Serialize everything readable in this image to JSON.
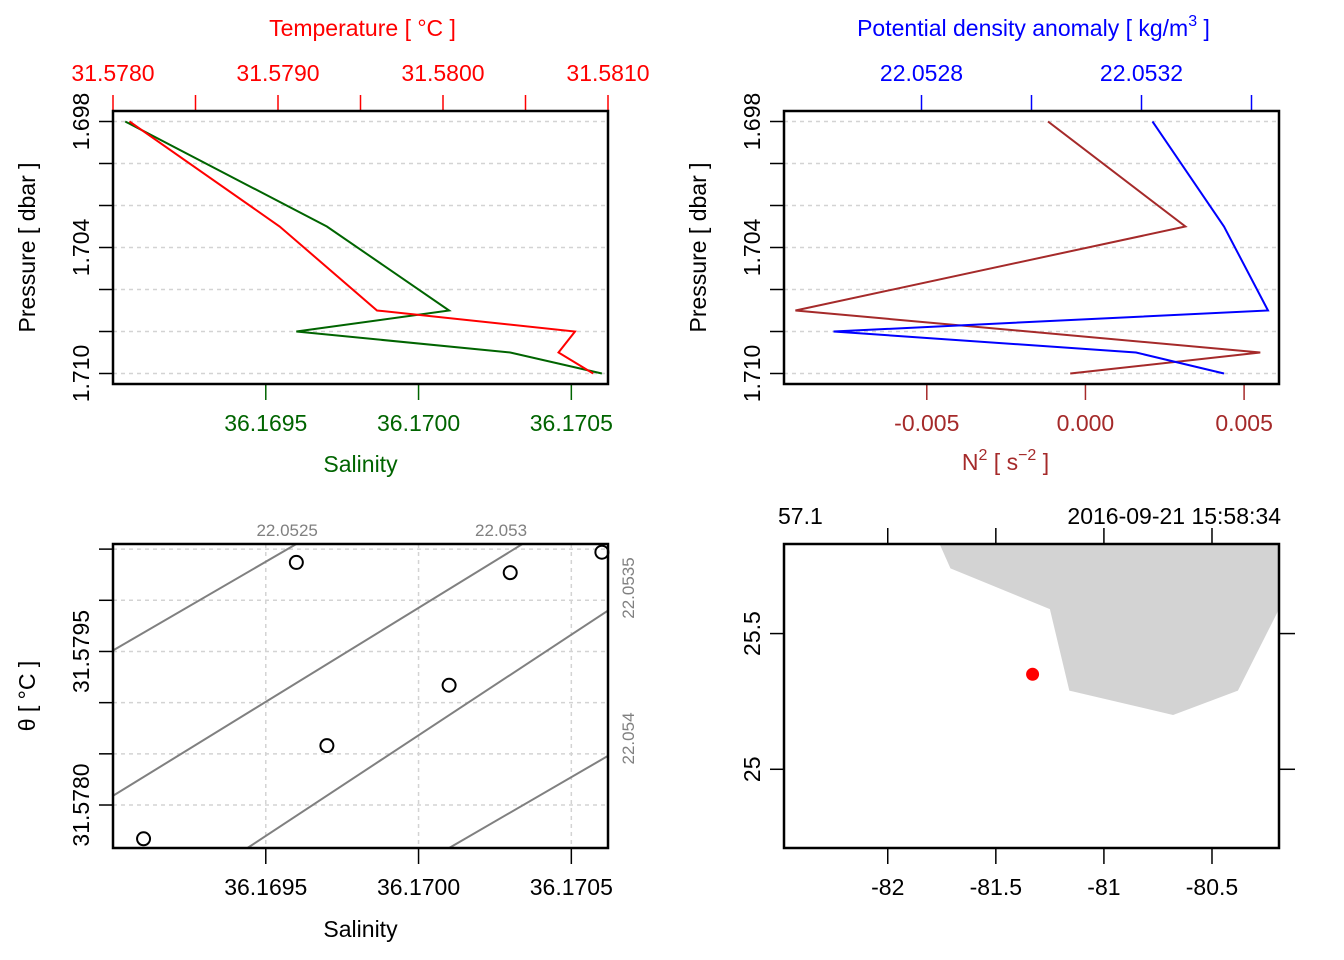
{
  "chart_data": [
    {
      "type": "line",
      "panel": "top-left",
      "title": "",
      "top_axis": {
        "label": "Temperature [ °C ]",
        "color": "#ff0000",
        "range": [
          31.578,
          31.581
        ],
        "ticks": [
          31.578,
          31.5785,
          31.579,
          31.5795,
          31.58,
          31.5805,
          31.581
        ],
        "tick_labels": [
          "31.5780",
          "31.5790",
          "31.5800",
          "31.5810"
        ],
        "tick_label_values": [
          31.578,
          31.579,
          31.58,
          31.581
        ]
      },
      "bottom_axis": {
        "label": "Salinity",
        "color": "#006400",
        "range": [
          36.169,
          36.17062
        ],
        "ticks": [
          36.1695,
          36.17,
          36.1705
        ],
        "tick_labels": [
          "36.1695",
          "36.1700",
          "36.1705"
        ]
      },
      "left_axis": {
        "label": "Pressure [ dbar ]",
        "range": [
          1.6975,
          1.7105
        ],
        "reversed": true,
        "ticks": [
          1.698,
          1.7,
          1.702,
          1.704,
          1.706,
          1.708,
          1.71
        ],
        "tick_labels": [
          "1.698",
          "1.704",
          "1.710"
        ],
        "tick_label_values": [
          1.698,
          1.704,
          1.71
        ]
      },
      "grid": "horizontal-dashed",
      "series": [
        {
          "name": "Temperature",
          "color": "#ff0000",
          "pressure": [
            1.698,
            1.703,
            1.707,
            1.708,
            1.709,
            1.71
          ],
          "values": [
            31.5781,
            31.57901,
            31.5796,
            31.5808,
            31.5807,
            31.58091
          ]
        },
        {
          "name": "Salinity",
          "color": "#006400",
          "pressure": [
            1.698,
            1.703,
            1.707,
            1.708,
            1.709,
            1.71
          ],
          "values": [
            36.16904,
            36.1697,
            36.1701,
            36.1696,
            36.1703,
            36.1706
          ]
        }
      ]
    },
    {
      "type": "line",
      "panel": "top-right",
      "top_axis": {
        "label": "Potential density anomaly [ kg/m",
        "label_sup": "3",
        "label_end": " ]",
        "color": "#0000ff",
        "range": [
          22.05255,
          22.05345
        ],
        "ticks": [
          22.0528,
          22.053,
          22.0532,
          22.0534
        ],
        "tick_labels": [
          "22.0528",
          "22.0532"
        ],
        "tick_label_values": [
          22.0528,
          22.0532
        ]
      },
      "bottom_axis": {
        "label": "N",
        "label_sup": "2",
        "label_mid": " [ s",
        "label_sup2": "−2",
        "label_end": " ]",
        "color": "#a52a2a",
        "range": [
          -0.0095,
          0.0061
        ],
        "ticks": [
          -0.005,
          0.0,
          0.005
        ],
        "tick_labels": [
          "-0.005",
          "0.000",
          "0.005"
        ]
      },
      "left_axis": {
        "label": "Pressure [ dbar ]",
        "range": [
          1.6975,
          1.7105
        ],
        "reversed": true,
        "ticks": [
          1.698,
          1.7,
          1.702,
          1.704,
          1.706,
          1.708,
          1.71
        ],
        "tick_labels": [
          "1.698",
          "1.704",
          "1.710"
        ],
        "tick_label_values": [
          1.698,
          1.704,
          1.71
        ]
      },
      "grid": "horizontal-dashed",
      "series": [
        {
          "name": "Potential density anomaly",
          "color": "#0000ff",
          "pressure": [
            1.698,
            1.703,
            1.707,
            1.708,
            1.709,
            1.71
          ],
          "values": [
            22.05322,
            22.05335,
            22.05343,
            22.05264,
            22.05319,
            22.05335
          ]
        },
        {
          "name": "N2",
          "color": "#a52a2a",
          "pressure": [
            1.698,
            1.703,
            1.707,
            1.709,
            1.71
          ],
          "values": [
            -0.00118,
            0.00315,
            -0.00914,
            0.00551,
            -0.00048
          ]
        }
      ]
    },
    {
      "type": "scatter",
      "panel": "bottom-left",
      "xlabel": "Salinity",
      "ylabel": "θ [ °C ]",
      "xlim": [
        36.169,
        36.17062
      ],
      "ylim": [
        31.57758,
        31.58055
      ],
      "xticks": [
        36.1695,
        36.17,
        36.1705
      ],
      "xtick_labels": [
        "36.1695",
        "36.1700",
        "36.1705"
      ],
      "yticks": [
        31.5775,
        31.578,
        31.5785,
        31.579,
        31.5795,
        31.58,
        31.5805
      ],
      "ytick_labels": [
        "31.5780",
        "31.5795"
      ],
      "ytick_label_values": [
        31.578,
        31.5795
      ],
      "grid": "dashed",
      "points": {
        "x": [
          36.1691,
          36.1696,
          36.1697,
          36.1701,
          36.1703,
          36.1706
        ],
        "y": [
          31.57767,
          31.58037,
          31.57858,
          31.57917,
          31.58027,
          31.58047
        ]
      },
      "isopycnals": {
        "color": "#808080",
        "labels": [
          "22.0525",
          "22.053",
          "22.0535",
          "22.054"
        ],
        "lines": [
          {
            "level": "22.052",
            "label": "",
            "x0": 36.169,
            "y0": 31.57951,
            "x1": 36.1696,
            "y1": 31.58055
          },
          {
            "level": "22.0525",
            "label": "22.0525",
            "x0": 36.169,
            "y0": 31.57809,
            "x1": 36.17034,
            "y1": 31.58055
          },
          {
            "level": "22.053",
            "label": "22.053",
            "x0": 36.16944,
            "y0": 31.57758,
            "x1": 36.17062,
            "y1": 31.5799
          },
          {
            "level": "22.0535",
            "label": "22.0535",
            "x0": 36.1701,
            "y0": 31.57758,
            "x1": 36.17062,
            "y1": 31.57848
          }
        ],
        "top_labels": [
          {
            "text": "22.0525",
            "x": 36.16957
          },
          {
            "text": "22.053",
            "x": 36.17027
          }
        ],
        "right_labels": [
          {
            "text": "22.0535",
            "y": 31.58012
          },
          {
            "text": "22.054",
            "y": 31.57865
          }
        ]
      }
    },
    {
      "type": "map",
      "panel": "bottom-right",
      "xlim": [
        -82.48,
        -80.19
      ],
      "ylim": [
        24.71,
        25.83
      ],
      "xticks": [
        -82,
        -81.5,
        -81,
        -80.5
      ],
      "xtick_labels": [
        "-82",
        "-81.5",
        "-81",
        "-80.5"
      ],
      "yticks": [
        25,
        25.5
      ],
      "ytick_labels": [
        "25",
        "25.5"
      ],
      "top_left_label": "57.1",
      "top_right_label": "2016-09-21 15:58:34",
      "land_color": "#d3d3d3",
      "land_polygon": [
        [
          -81.76,
          25.83
        ],
        [
          -81.71,
          25.74
        ],
        [
          -81.25,
          25.59
        ],
        [
          -81.16,
          25.29
        ],
        [
          -80.68,
          25.2
        ],
        [
          -80.38,
          25.29
        ],
        [
          -80.19,
          25.59
        ],
        [
          -80.19,
          25.83
        ]
      ],
      "station": {
        "lon": -81.33,
        "lat": 25.35,
        "color": "#ff0000"
      }
    }
  ]
}
